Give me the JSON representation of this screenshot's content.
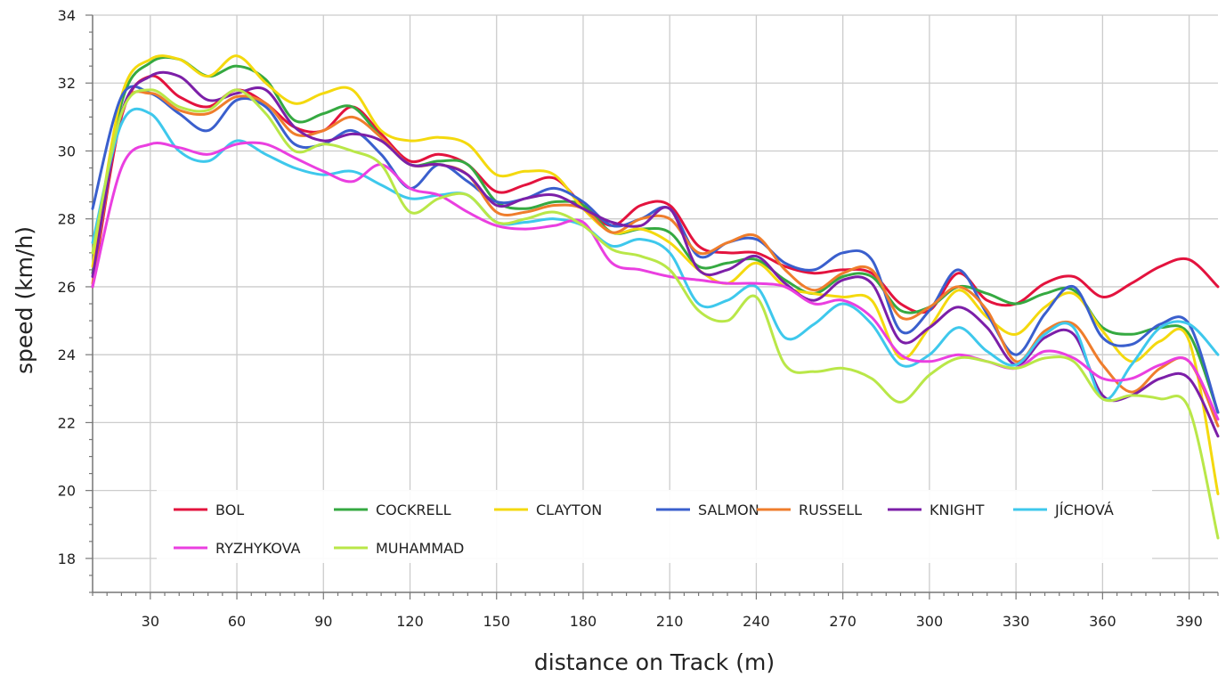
{
  "chart_data": {
    "type": "line",
    "title": "",
    "xlabel": "distance on Track (m)",
    "ylabel": "speed (km/h)",
    "xlim": [
      10,
      400
    ],
    "ylim": [
      17,
      34
    ],
    "xticks": [
      30,
      60,
      90,
      120,
      150,
      180,
      210,
      240,
      270,
      300,
      330,
      360,
      390
    ],
    "yticks": [
      18,
      20,
      22,
      24,
      26,
      28,
      30,
      32,
      34
    ],
    "grid": true,
    "legend_position": "bottom",
    "x": [
      10,
      20,
      30,
      40,
      50,
      60,
      70,
      80,
      90,
      100,
      110,
      120,
      130,
      140,
      150,
      160,
      170,
      180,
      190,
      200,
      210,
      220,
      230,
      240,
      250,
      260,
      270,
      280,
      290,
      300,
      310,
      320,
      330,
      340,
      350,
      360,
      370,
      380,
      390,
      400
    ],
    "series": [
      {
        "name": "BOL",
        "color": "#e3133e",
        "values": [
          26.0,
          31.0,
          32.2,
          31.6,
          31.3,
          31.8,
          31.4,
          30.7,
          30.6,
          31.3,
          30.5,
          29.7,
          29.9,
          29.6,
          28.8,
          29.0,
          29.2,
          28.4,
          27.8,
          28.4,
          28.4,
          27.2,
          27.0,
          27.0,
          26.6,
          26.4,
          26.5,
          26.4,
          25.5,
          25.3,
          26.4,
          25.6,
          25.5,
          26.1,
          26.3,
          25.7,
          26.1,
          26.6,
          26.8,
          26.0
        ]
      },
      {
        "name": "COCKRELL",
        "color": "#35a941",
        "values": [
          26.4,
          31.4,
          32.6,
          32.7,
          32.2,
          32.5,
          32.1,
          30.9,
          31.1,
          31.3,
          30.4,
          29.6,
          29.7,
          29.6,
          28.5,
          28.3,
          28.5,
          28.4,
          27.6,
          27.7,
          27.6,
          26.6,
          26.7,
          26.8,
          26.2,
          25.8,
          26.3,
          26.3,
          25.3,
          25.4,
          26.0,
          25.8,
          25.5,
          25.8,
          25.9,
          24.8,
          24.6,
          24.8,
          24.6,
          22.3
        ]
      },
      {
        "name": "CLAYTON",
        "color": "#f4d90e",
        "values": [
          26.6,
          31.6,
          32.7,
          32.7,
          32.2,
          32.8,
          32.0,
          31.4,
          31.7,
          31.8,
          30.6,
          30.3,
          30.4,
          30.2,
          29.3,
          29.4,
          29.3,
          28.3,
          27.6,
          27.7,
          27.3,
          26.5,
          26.1,
          26.7,
          26.0,
          25.8,
          25.7,
          25.6,
          23.9,
          24.8,
          25.9,
          25.1,
          24.6,
          25.4,
          25.8,
          24.7,
          23.8,
          24.4,
          24.4,
          19.9
        ]
      },
      {
        "name": "SALMON",
        "color": "#3a5fcd",
        "values": [
          28.3,
          31.6,
          31.7,
          31.1,
          30.6,
          31.5,
          31.3,
          30.2,
          30.2,
          30.6,
          29.9,
          28.9,
          29.6,
          29.1,
          28.5,
          28.6,
          28.9,
          28.5,
          27.8,
          28.0,
          28.3,
          26.9,
          27.3,
          27.4,
          26.7,
          26.5,
          27.0,
          26.8,
          24.7,
          25.3,
          26.5,
          25.2,
          24.0,
          25.2,
          26.0,
          24.5,
          24.3,
          24.9,
          24.9,
          22.3
        ]
      },
      {
        "name": "RUSSELL",
        "color": "#ef7d2c",
        "values": [
          26.1,
          31.1,
          31.7,
          31.2,
          31.1,
          31.6,
          31.4,
          30.5,
          30.6,
          31.0,
          30.4,
          29.6,
          29.6,
          29.3,
          28.2,
          28.2,
          28.4,
          28.3,
          27.6,
          28.0,
          28.0,
          27.0,
          27.3,
          27.5,
          26.5,
          25.9,
          26.4,
          26.5,
          25.1,
          25.4,
          26.0,
          25.3,
          23.8,
          24.7,
          24.9,
          23.7,
          22.9,
          23.6,
          23.8,
          21.9
        ]
      },
      {
        "name": "KNIGHT",
        "color": "#7c1fa8",
        "values": [
          26.3,
          31.1,
          32.2,
          32.2,
          31.5,
          31.7,
          31.8,
          30.7,
          30.3,
          30.5,
          30.3,
          29.6,
          29.6,
          29.3,
          28.4,
          28.6,
          28.7,
          28.3,
          27.9,
          27.8,
          28.3,
          26.5,
          26.5,
          26.9,
          26.1,
          25.6,
          26.2,
          26.1,
          24.4,
          24.8,
          25.4,
          24.8,
          23.7,
          24.5,
          24.6,
          22.8,
          22.8,
          23.3,
          23.3,
          21.6
        ]
      },
      {
        "name": "JÍCHOVÁ",
        "color": "#3ec8ec",
        "values": [
          27.3,
          30.8,
          31.1,
          30.0,
          29.7,
          30.3,
          29.9,
          29.5,
          29.3,
          29.4,
          29.0,
          28.6,
          28.7,
          28.7,
          27.9,
          27.9,
          28.0,
          27.8,
          27.2,
          27.4,
          27.0,
          25.5,
          25.6,
          26.0,
          24.5,
          24.9,
          25.5,
          24.9,
          23.7,
          24.0,
          24.8,
          24.1,
          23.7,
          24.6,
          24.8,
          22.7,
          23.7,
          24.8,
          24.9,
          24.0
        ]
      },
      {
        "name": "RYZHYKOVA",
        "color": "#ea3fe0",
        "values": [
          26.0,
          29.5,
          30.2,
          30.1,
          29.9,
          30.2,
          30.2,
          29.8,
          29.4,
          29.1,
          29.6,
          28.9,
          28.7,
          28.2,
          27.8,
          27.7,
          27.8,
          27.9,
          26.7,
          26.5,
          26.3,
          26.2,
          26.1,
          26.1,
          26.0,
          25.5,
          25.6,
          25.1,
          24.0,
          23.8,
          24.0,
          23.8,
          23.6,
          24.1,
          23.9,
          23.3,
          23.3,
          23.7,
          23.8,
          22.1
        ]
      },
      {
        "name": "MUHAMMAD",
        "color": "#b9e748",
        "values": [
          27.0,
          31.1,
          31.8,
          31.3,
          31.2,
          31.8,
          31.1,
          30.0,
          30.2,
          30.0,
          29.6,
          28.2,
          28.6,
          28.7,
          27.9,
          28.0,
          28.2,
          27.8,
          27.1,
          26.9,
          26.5,
          25.3,
          25.0,
          25.7,
          23.7,
          23.5,
          23.6,
          23.3,
          22.6,
          23.4,
          23.9,
          23.8,
          23.6,
          23.9,
          23.8,
          22.7,
          22.8,
          22.7,
          22.4,
          18.6
        ]
      }
    ]
  }
}
